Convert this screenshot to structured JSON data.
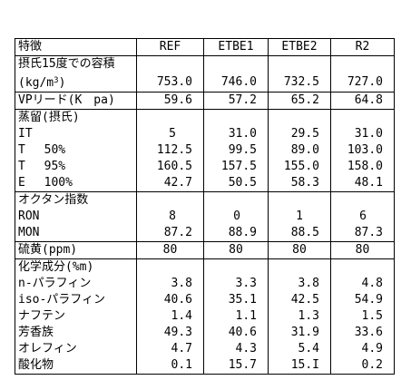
{
  "header": {
    "label": "特徴",
    "cols": [
      "REF",
      "ETBE1",
      "ETBE2",
      "R2"
    ]
  },
  "density": {
    "label_line1": "摂氏15度での容積",
    "label_line2_pre": "(kg/m",
    "label_line2_sup": "3",
    "label_line2_post": ")",
    "values": [
      "753.0",
      "746.0",
      "732.5",
      "727.0"
    ]
  },
  "vp": {
    "label": "VPリード(K　pa)",
    "values": [
      "59.6",
      "57.2",
      "65.2",
      "64.8"
    ]
  },
  "distill": {
    "title": "蒸留(摂氏)",
    "rows": [
      {
        "label": "IT",
        "values": [
          "5",
          "31.0",
          "29.5",
          "31.0"
        ]
      },
      {
        "label": "T　 50%",
        "values": [
          "112.5",
          "99.5",
          "89.0",
          "103.0"
        ]
      },
      {
        "label": "T　 95%",
        "values": [
          "160.5",
          "157.5",
          "155.0",
          "158.0"
        ]
      },
      {
        "label": "E　 100%",
        "values": [
          "42.7",
          "50.5",
          "58.3",
          "48.1"
        ]
      }
    ]
  },
  "octane": {
    "title": "オクタン指数",
    "rows": [
      {
        "label": "RON",
        "values": [
          "8",
          "0",
          "1",
          "6"
        ]
      },
      {
        "label": "MON",
        "values": [
          "87.2",
          "88.9",
          "88.5",
          "87.3"
        ]
      }
    ]
  },
  "sulfur": {
    "label": "硫黄(ppm)",
    "values": [
      "80",
      "80",
      "80",
      "80"
    ]
  },
  "chem": {
    "title": "化学成分(%m)",
    "rows": [
      {
        "label": "n-パラフィン",
        "values": [
          "3.8",
          "3.3",
          "3.8",
          "4.8"
        ]
      },
      {
        "label": "iso-パラフィン",
        "values": [
          "40.6",
          "35.1",
          "42.5",
          "54.9"
        ]
      },
      {
        "label": "ナフテン",
        "values": [
          "1.4",
          "1.1",
          "1.3",
          "1.5"
        ]
      },
      {
        "label": "芳香族",
        "values": [
          "49.3",
          "40.6",
          "31.9",
          "33.6"
        ]
      },
      {
        "label": "オレフィン",
        "values": [
          "4.7",
          "4.3",
          "5.4",
          "4.9"
        ]
      },
      {
        "label": "酸化物",
        "values": [
          "0.1",
          "15.7",
          "15.I",
          "0.2"
        ]
      }
    ]
  }
}
